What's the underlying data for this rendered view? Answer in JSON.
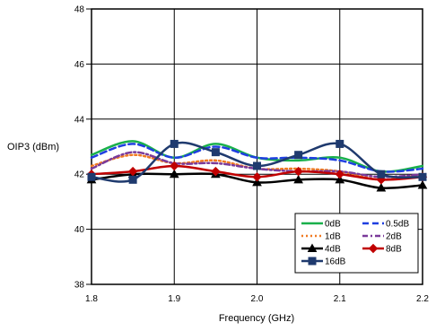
{
  "chart_data": {
    "type": "line",
    "title": "",
    "xlabel": "Frequency (GHz)",
    "ylabel": "OIP3 (dBm)",
    "xlim": [
      1.8,
      2.2
    ],
    "ylim": [
      38,
      48
    ],
    "xticks": [
      "1.8",
      "1.9",
      "2.0",
      "2.1",
      "2.2"
    ],
    "yticks": [
      "38",
      "40",
      "42",
      "44",
      "46",
      "48"
    ],
    "grid": true,
    "legend_position": "bottom-right",
    "series": [
      {
        "name": "0dB",
        "color": "#19b04b",
        "dash": "solid",
        "marker": "none",
        "x": [
          1.8,
          1.85,
          1.9,
          1.95,
          2.0,
          2.05,
          2.1,
          2.15,
          2.2
        ],
        "y": [
          42.7,
          43.2,
          42.6,
          43.1,
          42.6,
          42.5,
          42.6,
          42.1,
          42.3
        ]
      },
      {
        "name": "0.5dB",
        "color": "#1f3fe0",
        "dash": "dash",
        "marker": "none",
        "x": [
          1.8,
          1.85,
          1.9,
          1.95,
          2.0,
          2.05,
          2.1,
          2.15,
          2.2
        ],
        "y": [
          42.6,
          43.1,
          42.6,
          43.0,
          42.6,
          42.6,
          42.5,
          42.1,
          42.2
        ]
      },
      {
        "name": "1dB",
        "color": "#f07a22",
        "dash": "dot",
        "marker": "none",
        "x": [
          1.8,
          1.85,
          1.9,
          1.95,
          2.0,
          2.05,
          2.1,
          2.15,
          2.2
        ],
        "y": [
          42.3,
          42.7,
          42.4,
          42.5,
          42.2,
          42.2,
          42.1,
          41.8,
          42.0
        ]
      },
      {
        "name": "2dB",
        "color": "#7a3a9a",
        "dash": "dashdot",
        "marker": "none",
        "x": [
          1.8,
          1.85,
          1.9,
          1.95,
          2.0,
          2.05,
          2.1,
          2.15,
          2.2
        ],
        "y": [
          42.2,
          42.8,
          42.4,
          42.4,
          42.2,
          42.1,
          42.1,
          41.9,
          42.0
        ]
      },
      {
        "name": "4dB",
        "color": "#000000",
        "dash": "solid",
        "marker": "triangle",
        "x": [
          1.8,
          1.85,
          1.9,
          1.95,
          2.0,
          2.05,
          2.1,
          2.15,
          2.2
        ],
        "y": [
          41.8,
          42.0,
          42.0,
          42.0,
          41.7,
          41.8,
          41.8,
          41.5,
          41.6
        ]
      },
      {
        "name": "8dB",
        "color": "#c00000",
        "dash": "solid",
        "marker": "diamond",
        "x": [
          1.8,
          1.85,
          1.9,
          1.95,
          2.0,
          2.05,
          2.1,
          2.15,
          2.2
        ],
        "y": [
          42.0,
          42.1,
          42.3,
          42.1,
          41.9,
          42.1,
          42.0,
          41.8,
          41.9
        ]
      },
      {
        "name": "16dB",
        "color": "#1f3a6e",
        "dash": "solid",
        "marker": "square",
        "x": [
          1.8,
          1.85,
          1.9,
          1.95,
          2.0,
          2.05,
          2.1,
          2.15,
          2.2
        ],
        "y": [
          41.9,
          41.8,
          43.1,
          42.8,
          42.3,
          42.7,
          43.1,
          42.0,
          41.9
        ]
      }
    ]
  }
}
